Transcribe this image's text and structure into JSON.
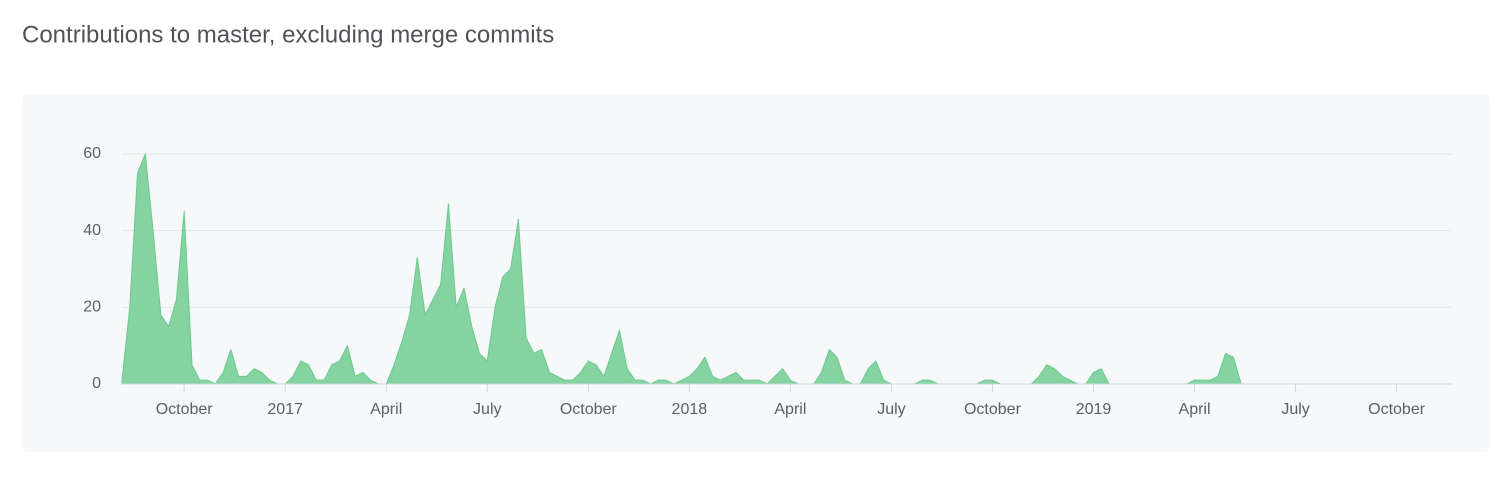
{
  "chart_data": {
    "type": "area",
    "title": "Contributions to master, excluding merge commits",
    "color": "#85d3a1",
    "line_color": "#6cc98e",
    "grid": true,
    "ylim": [
      0,
      60
    ],
    "yticks": [
      0,
      20,
      40,
      60
    ],
    "categories": [
      null,
      null,
      null,
      null,
      null,
      null,
      null,
      null,
      "October",
      null,
      null,
      null,
      null,
      null,
      null,
      null,
      null,
      null,
      null,
      null,
      null,
      "2017",
      null,
      null,
      null,
      null,
      null,
      null,
      null,
      null,
      null,
      null,
      null,
      null,
      "April",
      null,
      null,
      null,
      null,
      null,
      null,
      null,
      null,
      null,
      null,
      null,
      null,
      "July",
      null,
      null,
      null,
      null,
      null,
      null,
      null,
      null,
      null,
      null,
      null,
      null,
      "October",
      null,
      null,
      null,
      null,
      null,
      null,
      null,
      null,
      null,
      null,
      null,
      null,
      "2018",
      null,
      null,
      null,
      null,
      null,
      null,
      null,
      null,
      null,
      null,
      null,
      null,
      "April",
      null,
      null,
      null,
      null,
      null,
      null,
      null,
      null,
      null,
      null,
      null,
      null,
      "July",
      null,
      null,
      null,
      null,
      null,
      null,
      null,
      null,
      null,
      null,
      null,
      null,
      "October",
      null,
      null,
      null,
      null,
      null,
      null,
      null,
      null,
      null,
      null,
      null,
      null,
      "2019",
      null,
      null,
      null,
      null,
      null,
      null,
      null,
      null,
      null,
      null,
      null,
      null,
      "April",
      null,
      null,
      null,
      null,
      null,
      null,
      null,
      null,
      null,
      null,
      null,
      null,
      "July",
      null,
      null,
      null,
      null,
      null,
      null,
      null,
      null,
      null,
      null,
      null,
      null,
      "October",
      null,
      null,
      null,
      null,
      null,
      null,
      null
    ],
    "values": [
      1,
      20,
      55,
      60,
      40,
      18,
      15,
      22,
      45,
      5,
      1,
      1,
      0,
      3,
      9,
      2,
      2,
      4,
      3,
      1,
      0,
      0,
      2,
      6,
      5,
      1,
      1,
      5,
      6,
      10,
      2,
      3,
      1,
      0,
      0,
      5,
      11,
      18,
      33,
      18,
      22,
      26,
      47,
      20,
      25,
      15,
      8,
      6,
      20,
      28,
      30,
      43,
      12,
      8,
      9,
      3,
      2,
      1,
      1,
      3,
      6,
      5,
      2,
      8,
      14,
      4,
      1,
      1,
      0,
      1,
      1,
      0,
      1,
      2,
      4,
      7,
      2,
      1,
      2,
      3,
      1,
      1,
      1,
      0,
      2,
      4,
      1,
      0,
      0,
      0,
      3,
      9,
      7,
      1,
      0,
      0,
      4,
      6,
      1,
      0,
      0,
      0,
      0,
      1,
      1,
      0,
      0,
      0,
      0,
      0,
      0,
      1,
      1,
      0,
      0,
      0,
      0,
      0,
      2,
      5,
      4,
      2,
      1,
      0,
      0,
      3,
      4,
      0,
      0,
      0,
      0,
      0,
      0,
      0,
      0,
      0,
      0,
      0,
      1,
      1,
      1,
      2,
      8,
      7,
      0,
      0,
      0,
      0,
      0,
      0,
      0,
      0,
      0,
      0,
      0,
      0,
      0,
      0,
      0,
      0,
      0,
      0,
      0,
      0,
      0,
      0,
      0,
      0,
      0,
      0,
      0,
      0
    ]
  }
}
